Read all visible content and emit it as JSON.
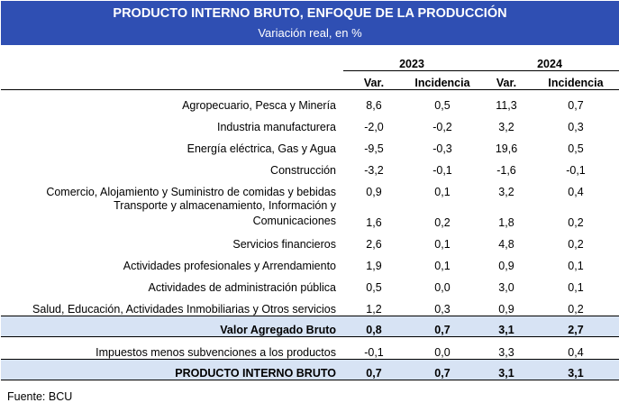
{
  "header": {
    "title": "PRODUCTO INTERNO BRUTO, ENFOQUE DE LA PRODUCCIÓN",
    "subtitle": "Variación real, en %"
  },
  "years": [
    "2023",
    "2024"
  ],
  "columns": [
    "Var.",
    "Incidencia",
    "Var.",
    "Incidencia"
  ],
  "rows": [
    {
      "label": "Agropecuario, Pesca y Minería",
      "values": [
        "8,6",
        "0,5",
        "11,3",
        "0,7"
      ]
    },
    {
      "label": "Industria manufacturera",
      "values": [
        "-2,0",
        "-0,2",
        "3,2",
        "0,3"
      ]
    },
    {
      "label": "Energía eléctrica, Gas y Agua",
      "values": [
        "-9,5",
        "-0,3",
        "19,6",
        "0,5"
      ]
    },
    {
      "label": "Construcción",
      "values": [
        "-3,2",
        "-0,1",
        "-1,6",
        "-0,1"
      ]
    },
    {
      "label": "Comercio, Alojamiento y Suministro de comidas y bebidas",
      "values": [
        "0,9",
        "0,1",
        "3,2",
        "0,4"
      ]
    },
    {
      "label_line1": "Transporte y almacenamiento, Información y",
      "label_line2": "Comunicaciones",
      "values": [
        "1,6",
        "0,2",
        "1,8",
        "0,2"
      ]
    },
    {
      "label": "Servicios financieros",
      "values": [
        "2,6",
        "0,1",
        "4,8",
        "0,2"
      ]
    },
    {
      "label": "Actividades profesionales y Arrendamiento",
      "values": [
        "1,9",
        "0,1",
        "0,9",
        "0,1"
      ]
    },
    {
      "label": "Actividades de administración pública",
      "values": [
        "0,5",
        "0,0",
        "3,0",
        "0,1"
      ]
    },
    {
      "label": "Salud, Educación, Actividades Inmobiliarias y Otros servicios",
      "values": [
        "1,2",
        "0,3",
        "0,9",
        "0,2"
      ]
    }
  ],
  "vab": {
    "label": "Valor Agregado Bruto",
    "values": [
      "0,8",
      "0,7",
      "3,1",
      "2,7"
    ]
  },
  "impuestos": {
    "label": "Impuestos menos subvenciones a los productos",
    "values": [
      "-0,1",
      "0,0",
      "3,3",
      "0,4"
    ]
  },
  "pib": {
    "label": "PRODUCTO INTERNO BRUTO",
    "values": [
      "0,7",
      "0,7",
      "3,1",
      "3,1"
    ]
  },
  "source": "Fuente: BCU",
  "colors": {
    "header_bg": "#2f4fb3",
    "highlight_bg": "#d7e3f4"
  }
}
